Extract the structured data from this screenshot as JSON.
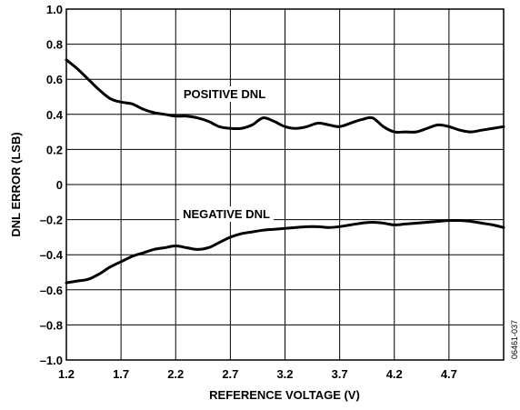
{
  "chart_data": {
    "type": "line",
    "xlabel": "REFERENCE VOLTAGE (V)",
    "ylabel": "DNL ERROR (LSB)",
    "xlim": [
      1.2,
      5.2
    ],
    "ylim": [
      -1.0,
      1.0
    ],
    "x_ticks": [
      "1.2",
      "1.7",
      "2.2",
      "2.7",
      "3.2",
      "3.7",
      "4.2",
      "4.7"
    ],
    "y_ticks": [
      "1.0",
      "0.8",
      "0.6",
      "0.4",
      "0.2",
      "0",
      "–0.2",
      "–0.4",
      "–0.6",
      "–0.8",
      "–1.0"
    ],
    "grid": true,
    "figure_code": "06461-037",
    "series": [
      {
        "name": "POSITIVE DNL",
        "x": [
          1.2,
          1.3,
          1.4,
          1.5,
          1.6,
          1.7,
          1.8,
          1.9,
          2.0,
          2.1,
          2.2,
          2.3,
          2.4,
          2.5,
          2.6,
          2.7,
          2.8,
          2.9,
          3.0,
          3.1,
          3.2,
          3.3,
          3.4,
          3.5,
          3.6,
          3.7,
          3.8,
          3.9,
          4.0,
          4.1,
          4.2,
          4.3,
          4.4,
          4.5,
          4.6,
          4.7,
          4.8,
          4.9,
          5.0,
          5.1,
          5.2
        ],
        "values": [
          0.71,
          0.66,
          0.6,
          0.54,
          0.49,
          0.47,
          0.46,
          0.43,
          0.41,
          0.4,
          0.39,
          0.39,
          0.38,
          0.36,
          0.33,
          0.32,
          0.32,
          0.34,
          0.38,
          0.36,
          0.33,
          0.32,
          0.33,
          0.35,
          0.34,
          0.33,
          0.35,
          0.37,
          0.38,
          0.33,
          0.3,
          0.3,
          0.3,
          0.32,
          0.34,
          0.33,
          0.31,
          0.3,
          0.31,
          0.32,
          0.33
        ]
      },
      {
        "name": "NEGATIVE DNL",
        "x": [
          1.2,
          1.3,
          1.4,
          1.5,
          1.6,
          1.7,
          1.8,
          1.9,
          2.0,
          2.1,
          2.2,
          2.3,
          2.4,
          2.5,
          2.6,
          2.7,
          2.8,
          2.9,
          3.0,
          3.1,
          3.2,
          3.3,
          3.4,
          3.5,
          3.6,
          3.7,
          3.8,
          3.9,
          4.0,
          4.1,
          4.2,
          4.3,
          4.4,
          4.5,
          4.6,
          4.7,
          4.8,
          4.9,
          5.0,
          5.1,
          5.2
        ],
        "values": [
          -0.56,
          -0.55,
          -0.54,
          -0.51,
          -0.47,
          -0.44,
          -0.41,
          -0.39,
          -0.37,
          -0.36,
          -0.35,
          -0.36,
          -0.37,
          -0.36,
          -0.33,
          -0.3,
          -0.28,
          -0.27,
          -0.26,
          -0.255,
          -0.25,
          -0.245,
          -0.24,
          -0.24,
          -0.245,
          -0.24,
          -0.23,
          -0.22,
          -0.215,
          -0.22,
          -0.23,
          -0.225,
          -0.22,
          -0.215,
          -0.21,
          -0.205,
          -0.205,
          -0.21,
          -0.22,
          -0.23,
          -0.245
        ]
      }
    ]
  }
}
